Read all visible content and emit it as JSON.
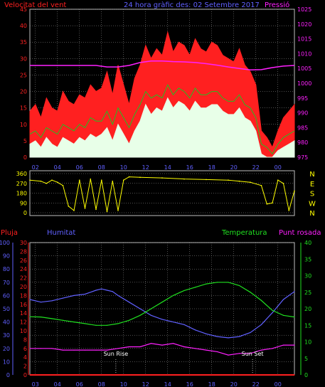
{
  "header": {
    "left": "Velocitat del vent",
    "center": "24 hora gràfic des: 02 Setembre 2017",
    "right": "Pressió"
  },
  "colors": {
    "wind_gust": "#ff2020",
    "wind_avg": "#20c020",
    "wind_min": "#e8ffe8",
    "pressure": "#ff20ff",
    "wind_dir": "#ffff00",
    "humidity": "#6060ff",
    "temperature": "#20e020",
    "dewpoint": "#ff20ff",
    "rain": "#ff2020",
    "axis_red": "#ff2020",
    "axis_blue": "#6060ff",
    "axis_green": "#20e020",
    "axis_magenta": "#ff20ff",
    "grid": "#a0a0a0"
  },
  "chart_data": [
    {
      "id": "wind_pressure",
      "type": "line",
      "title": "24 hora gràfic des: 02 Setembre 2017",
      "ylabel_left": "Velocitat del vent",
      "ylabel_right": "Pressió",
      "ylim_left": [
        0,
        45
      ],
      "yticks_left": [
        0,
        5,
        10,
        15,
        20,
        25,
        30,
        35,
        40,
        45
      ],
      "ylim_right": [
        975,
        1025
      ],
      "yticks_right": [
        975,
        980,
        985,
        990,
        995,
        1000,
        1005,
        1010,
        1015,
        1020,
        1025
      ],
      "xticks": [
        "02",
        "04",
        "06",
        "08",
        "10",
        "12",
        "14",
        "16",
        "18",
        "20",
        "22",
        "00"
      ],
      "grid": true,
      "series": [
        {
          "id": "gust",
          "x": [
            0,
            0.5,
            1,
            1.5,
            2,
            2.5,
            3,
            3.5,
            4,
            4.5,
            5,
            5.5,
            6,
            6.5,
            7,
            7.5,
            8,
            8.5,
            9,
            9.5,
            10,
            10.5,
            11,
            11.5,
            12,
            12.5,
            13,
            13.5,
            14,
            14.5,
            15,
            15.5,
            16,
            16.5,
            17,
            17.5,
            18,
            18.5,
            19,
            19.5,
            20,
            20.5,
            21,
            21.5,
            22,
            22.5,
            23,
            23.5,
            24
          ],
          "values": [
            14,
            16,
            12,
            18,
            15,
            14,
            20,
            17,
            16,
            19,
            18,
            22,
            20,
            21,
            26,
            19,
            28,
            22,
            16,
            24,
            28,
            34,
            30,
            33,
            31,
            38,
            32,
            35,
            34,
            31,
            36,
            33,
            32,
            35,
            34,
            31,
            30,
            29,
            33,
            28,
            26,
            22,
            8,
            6,
            3,
            8,
            12,
            14,
            16
          ]
        },
        {
          "id": "avg",
          "x": [
            0,
            0.5,
            1,
            1.5,
            2,
            2.5,
            3,
            3.5,
            4,
            4.5,
            5,
            5.5,
            6,
            6.5,
            7,
            7.5,
            8,
            8.5,
            9,
            9.5,
            10,
            10.5,
            11,
            11.5,
            12,
            12.5,
            13,
            13.5,
            14,
            14.5,
            15,
            15.5,
            16,
            16.5,
            17,
            17.5,
            18,
            18.5,
            19,
            19.5,
            20,
            20.5,
            21,
            21.5,
            22,
            22.5,
            23,
            23.5,
            24
          ],
          "values": [
            7,
            8,
            6,
            9,
            8,
            7,
            10,
            9,
            8,
            10,
            9,
            12,
            11,
            11,
            14,
            10,
            15,
            12,
            9,
            13,
            16,
            20,
            18,
            19,
            18,
            22,
            19,
            21,
            20,
            18,
            21,
            19,
            19,
            20,
            20,
            18,
            17,
            17,
            19,
            16,
            15,
            12,
            4,
            3,
            1,
            4,
            6,
            7,
            8
          ]
        },
        {
          "id": "min",
          "x": [
            0,
            0.5,
            1,
            1.5,
            2,
            2.5,
            3,
            3.5,
            4,
            4.5,
            5,
            5.5,
            6,
            6.5,
            7,
            7.5,
            8,
            8.5,
            9,
            9.5,
            10,
            10.5,
            11,
            11.5,
            12,
            12.5,
            13,
            13.5,
            14,
            14.5,
            15,
            15.5,
            16,
            16.5,
            17,
            17.5,
            18,
            18.5,
            19,
            19.5,
            20,
            20.5,
            21,
            21.5,
            22,
            22.5,
            23,
            23.5,
            24
          ],
          "values": [
            4,
            5,
            3,
            6,
            4,
            3,
            6,
            5,
            4,
            6,
            5,
            7,
            6,
            7,
            9,
            5,
            10,
            7,
            4,
            8,
            11,
            16,
            13,
            15,
            14,
            18,
            15,
            17,
            16,
            14,
            17,
            15,
            15,
            16,
            16,
            14,
            13,
            13,
            15,
            12,
            11,
            8,
            1,
            0,
            0,
            2,
            3,
            4,
            5
          ]
        },
        {
          "id": "pressure",
          "axis": "right",
          "x": [
            0,
            2,
            4,
            6,
            7,
            8,
            9,
            10,
            11,
            12,
            13,
            14,
            15,
            16,
            17,
            18,
            19,
            20,
            21,
            22,
            23,
            24
          ],
          "values": [
            1006,
            1006,
            1006,
            1006,
            1005.5,
            1005.5,
            1006,
            1007,
            1007.5,
            1007.5,
            1007.3,
            1007.2,
            1007,
            1006.6,
            1006.1,
            1005.5,
            1005,
            1004.5,
            1004.6,
            1005.3,
            1005.8,
            1006
          ]
        }
      ]
    },
    {
      "id": "wind_direction",
      "type": "line",
      "ylim": [
        0,
        360
      ],
      "yticks": [
        0,
        90,
        180,
        270,
        360
      ],
      "compass": [
        "N",
        "W",
        "S",
        "E",
        "N"
      ],
      "series": [
        {
          "id": "direction",
          "x": [
            0,
            1,
            1.5,
            2,
            2.5,
            3,
            3.5,
            4,
            4.5,
            5,
            5.5,
            6,
            6.5,
            7,
            7.5,
            8,
            8.5,
            9,
            10,
            12,
            14,
            16,
            18,
            19,
            20,
            21,
            21.5,
            22,
            22.5,
            23,
            23.5,
            24
          ],
          "values": [
            300,
            290,
            270,
            300,
            280,
            250,
            60,
            20,
            300,
            40,
            310,
            30,
            300,
            10,
            290,
            20,
            300,
            330,
            325,
            320,
            310,
            305,
            300,
            290,
            280,
            250,
            80,
            90,
            300,
            270,
            20,
            200
          ]
        }
      ]
    },
    {
      "id": "temp_hum",
      "type": "line",
      "labels": {
        "rain": "Pluja",
        "humidity": "Humitat",
        "temperature": "Temperatura",
        "dewpoint": "Punt rosada"
      },
      "ylim_rain": [
        0,
        30
      ],
      "yticks_rain": [
        0,
        2,
        4,
        6,
        8,
        10,
        12,
        14,
        16,
        18,
        20,
        22,
        24,
        26,
        28,
        30
      ],
      "ylim_humidity": [
        0,
        100
      ],
      "yticks_humidity": [
        0,
        10,
        20,
        30,
        40,
        50,
        60,
        70,
        80,
        90,
        100
      ],
      "ylim_temp": [
        0,
        40
      ],
      "yticks_temp": [
        0,
        5,
        10,
        15,
        20,
        25,
        30,
        35,
        40
      ],
      "xticks": [
        "03",
        "04",
        "06",
        "08",
        "10",
        "12",
        "14",
        "16",
        "18",
        "20",
        "22",
        "00"
      ],
      "annotations": [
        {
          "label": "Sun Rise",
          "x": 7.8
        },
        {
          "label": "Sun Set",
          "x": 20.2
        }
      ],
      "series": [
        {
          "id": "humidity",
          "x": [
            0,
            1,
            2,
            3,
            4,
            5,
            6,
            6.5,
            7,
            7.5,
            8,
            9,
            10,
            11,
            12,
            13,
            14,
            15,
            16,
            17,
            18,
            19,
            20,
            21,
            22,
            23,
            24
          ],
          "values": [
            57,
            55,
            56,
            58,
            60,
            61,
            64,
            65,
            64,
            63,
            60,
            55,
            50,
            45,
            42,
            40,
            38,
            34,
            31,
            29,
            28,
            29,
            32,
            38,
            47,
            57,
            63
          ]
        },
        {
          "id": "temperature",
          "x": [
            0,
            1,
            2,
            3,
            4,
            5,
            6,
            7,
            8,
            9,
            10,
            11,
            12,
            13,
            14,
            15,
            16,
            17,
            18,
            19,
            20,
            21,
            22,
            23,
            24
          ],
          "values": [
            17.6,
            17.5,
            17,
            16.5,
            16,
            15.5,
            15,
            15,
            15.5,
            16.5,
            18,
            20,
            22,
            24,
            25.5,
            26.5,
            27.5,
            28,
            28,
            27,
            25,
            22.5,
            19.5,
            18,
            17.5
          ]
        },
        {
          "id": "dewpoint",
          "x": [
            0,
            1,
            2,
            3,
            4,
            5,
            6,
            7,
            8,
            9,
            10,
            11,
            12,
            13,
            14,
            15,
            16,
            17,
            18,
            19,
            20,
            21,
            22,
            23,
            24
          ],
          "values": [
            8,
            8,
            8,
            7.5,
            7.5,
            7.5,
            7.5,
            7.5,
            8,
            8.5,
            8.5,
            9.5,
            9,
            9.5,
            8.5,
            8,
            7.5,
            7,
            6,
            6.5,
            6.5,
            7.5,
            8,
            9,
            9
          ]
        },
        {
          "id": "rain",
          "x": [
            0,
            24
          ],
          "values": [
            0,
            0
          ]
        }
      ]
    }
  ]
}
